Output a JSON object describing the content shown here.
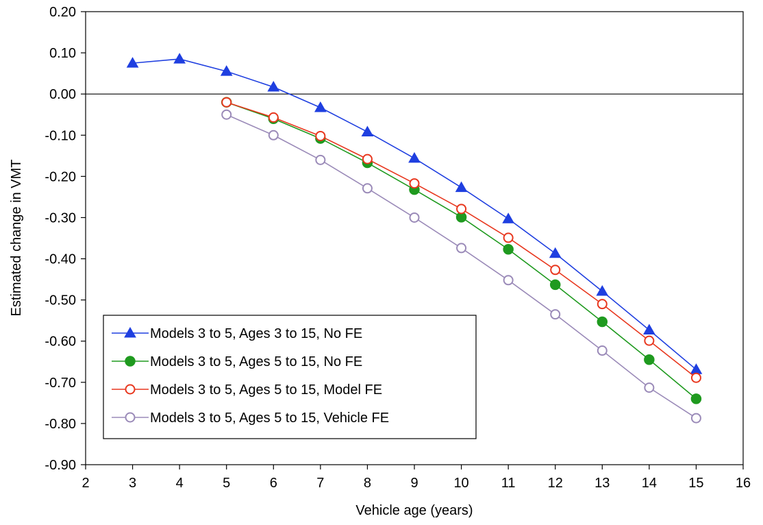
{
  "chart_data": {
    "type": "line",
    "title": "",
    "xlabel": "Vehicle age (years)",
    "ylabel": "Estimated change in VMT",
    "xlim": [
      2,
      16
    ],
    "ylim": [
      -0.9,
      0.2
    ],
    "x_ticks": [
      2,
      3,
      4,
      5,
      6,
      7,
      8,
      9,
      10,
      11,
      12,
      13,
      14,
      15,
      16
    ],
    "x_tick_labels": [
      "2",
      "3",
      "4",
      "5",
      "6",
      "7",
      "8",
      "9",
      "10",
      "11",
      "12",
      "13",
      "14",
      "15",
      "16"
    ],
    "y_ticks": [
      0.2,
      0.1,
      0.0,
      -0.1,
      -0.2,
      -0.3,
      -0.4,
      -0.5,
      -0.6,
      -0.7,
      -0.8,
      -0.9
    ],
    "y_tick_labels": [
      "0.20",
      "0.10",
      "0.00",
      "-0.10",
      "-0.20",
      "-0.30",
      "-0.40",
      "-0.50",
      "-0.60",
      "-0.70",
      "-0.80",
      "-0.90"
    ],
    "grid": false,
    "zero_line": true,
    "legend_position": "bottom-left",
    "series": [
      {
        "name": "Models 3 to 5, Ages 3 to 15, No FE",
        "color": "#1f3fe0",
        "marker": "triangle",
        "x": [
          3,
          4,
          5,
          6,
          7,
          8,
          9,
          10,
          11,
          12,
          13,
          14,
          15
        ],
        "y": [
          0.075,
          0.085,
          0.055,
          0.017,
          -0.033,
          -0.092,
          -0.156,
          -0.227,
          -0.303,
          -0.387,
          -0.479,
          -0.573,
          -0.669
        ]
      },
      {
        "name": "Models 3 to 5, Ages 5 to 15, No FE",
        "color": "#1f9a1f",
        "marker": "filled-circle",
        "x": [
          5,
          6,
          7,
          8,
          9,
          10,
          11,
          12,
          13,
          14,
          15
        ],
        "y": [
          -0.02,
          -0.06,
          -0.108,
          -0.167,
          -0.232,
          -0.299,
          -0.377,
          -0.463,
          -0.553,
          -0.645,
          -0.74
        ]
      },
      {
        "name": "Models 3 to 5, Ages 5 to 15, Model FE",
        "color": "#e8371e",
        "marker": "open-circle",
        "x": [
          5,
          6,
          7,
          8,
          9,
          10,
          11,
          12,
          13,
          14,
          15
        ],
        "y": [
          -0.02,
          -0.057,
          -0.102,
          -0.158,
          -0.217,
          -0.279,
          -0.349,
          -0.427,
          -0.51,
          -0.599,
          -0.689
        ]
      },
      {
        "name": "Models 3 to 5, Ages 5 to 15, Vehicle FE",
        "color": "#9a8ab8",
        "marker": "open-circle",
        "x": [
          5,
          6,
          7,
          8,
          9,
          10,
          11,
          12,
          13,
          14,
          15
        ],
        "y": [
          -0.05,
          -0.1,
          -0.16,
          -0.229,
          -0.3,
          -0.374,
          -0.452,
          -0.535,
          -0.623,
          -0.713,
          -0.787
        ]
      }
    ]
  }
}
